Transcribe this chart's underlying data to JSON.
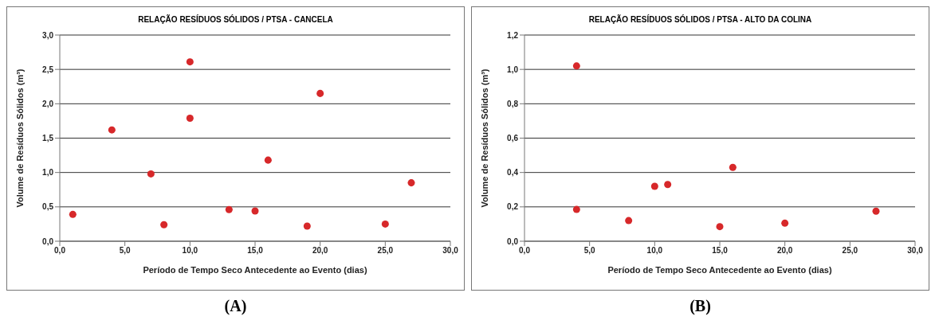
{
  "chart_data": [
    {
      "type": "scatter",
      "title": "RELAÇÃO RESÍDUOS SÓLIDOS / PTSA - CANCELA",
      "xlabel": "Período de Tempo Seco Antecedente ao Evento (dias)",
      "ylabel": "Volume de Resíduos Sólidos (m³)",
      "x": [
        1,
        4,
        7,
        8,
        10,
        10,
        13,
        15,
        16,
        19,
        20,
        25,
        27
      ],
      "series": [
        {
          "color": "#d7282a",
          "values": [
            0.39,
            1.62,
            0.98,
            0.24,
            2.61,
            1.79,
            0.46,
            0.44,
            1.18,
            0.22,
            2.15,
            0.25,
            0.85
          ]
        }
      ],
      "xlim": [
        0,
        30
      ],
      "ylim": [
        0,
        3
      ],
      "xticks": [
        {
          "value": 0,
          "label": "0,0"
        },
        {
          "value": 5,
          "label": "5,0"
        },
        {
          "value": 10,
          "label": "10,0"
        },
        {
          "value": 15,
          "label": "15,0"
        },
        {
          "value": 20,
          "label": "20,0"
        },
        {
          "value": 25,
          "label": "25,0"
        },
        {
          "value": 30,
          "label": "30,0"
        }
      ],
      "yticks": [
        {
          "value": 0,
          "label": "0,0"
        },
        {
          "value": 0.5,
          "label": "0,5"
        },
        {
          "value": 1,
          "label": "1,0"
        },
        {
          "value": 1.5,
          "label": "1,5"
        },
        {
          "value": 2,
          "label": "2,0"
        },
        {
          "value": 2.5,
          "label": "2,5"
        },
        {
          "value": 3,
          "label": "3,0"
        }
      ],
      "grid": "y",
      "marker": "circle",
      "annotations": [
        "(A)"
      ]
    },
    {
      "type": "scatter",
      "title": "RELAÇÃO RESÍDUOS SÓLIDOS / PTSA - ALTO DA COLINA",
      "xlabel": "Período de Tempo Seco Antecedente ao Evento (dias)",
      "ylabel": "Volume de Resíduos Sólidos (m³)",
      "x": [
        4,
        4,
        8,
        10,
        11,
        15,
        16,
        20,
        27
      ],
      "series": [
        {
          "color": "#d7282a",
          "values": [
            1.02,
            0.185,
            0.12,
            0.32,
            0.33,
            0.085,
            0.43,
            0.105,
            0.175
          ]
        }
      ],
      "xlim": [
        0,
        30
      ],
      "ylim": [
        0,
        1.2
      ],
      "xticks": [
        {
          "value": 0,
          "label": "0,0"
        },
        {
          "value": 5,
          "label": "5,0"
        },
        {
          "value": 10,
          "label": "10,0"
        },
        {
          "value": 15,
          "label": "15,0"
        },
        {
          "value": 20,
          "label": "20,0"
        },
        {
          "value": 25,
          "label": "25,0"
        },
        {
          "value": 30,
          "label": "30,0"
        }
      ],
      "yticks": [
        {
          "value": 0,
          "label": "0,0"
        },
        {
          "value": 0.2,
          "label": "0,2"
        },
        {
          "value": 0.4,
          "label": "0,4"
        },
        {
          "value": 0.6,
          "label": "0,6"
        },
        {
          "value": 0.8,
          "label": "0,8"
        },
        {
          "value": 1,
          "label": "1,0"
        },
        {
          "value": 1.2,
          "label": "1,2"
        }
      ],
      "grid": "y",
      "marker": "circle",
      "annotations": [
        "(B)"
      ]
    }
  ]
}
